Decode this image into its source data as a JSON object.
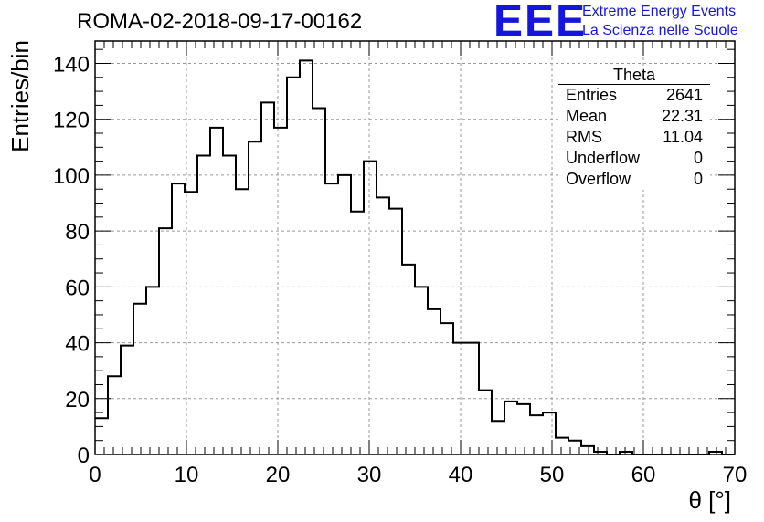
{
  "header": {
    "title": "ROMA-02-2018-09-17-00162",
    "logo_text": "EEE",
    "logo_line1": "Extreme Energy Events",
    "logo_line2": "La Scienza nelle Scuole",
    "brand_color": "#1515e0"
  },
  "stats_box": {
    "title": "Theta",
    "rows": [
      {
        "label": "Entries",
        "value": "2641"
      },
      {
        "label": "Mean",
        "value": "22.31"
      },
      {
        "label": "RMS",
        "value": "11.04"
      },
      {
        "label": "Underflow",
        "value": "0"
      },
      {
        "label": "Overflow",
        "value": "0"
      }
    ]
  },
  "chart_data": {
    "type": "bar",
    "style": "step-histogram",
    "xlabel": "θ [°]",
    "ylabel": "Entries/bin",
    "xlim": [
      0,
      70
    ],
    "ylim": [
      0,
      148
    ],
    "bin_width": 1.4,
    "bin_start": 0,
    "x_ticks": [
      0,
      10,
      20,
      30,
      40,
      50,
      60,
      70
    ],
    "y_ticks": [
      0,
      20,
      40,
      60,
      80,
      100,
      120,
      140
    ],
    "grid": true,
    "values": [
      13,
      28,
      39,
      54,
      60,
      81,
      97,
      94,
      107,
      117,
      107,
      95,
      112,
      126,
      117,
      135,
      141,
      124,
      97,
      100,
      87,
      105,
      92,
      88,
      68,
      60,
      52,
      47,
      40,
      40,
      23,
      12,
      19,
      18,
      14,
      15,
      6,
      5,
      3,
      1,
      0,
      1,
      0,
      0,
      0,
      0,
      0,
      0,
      1,
      0
    ]
  }
}
